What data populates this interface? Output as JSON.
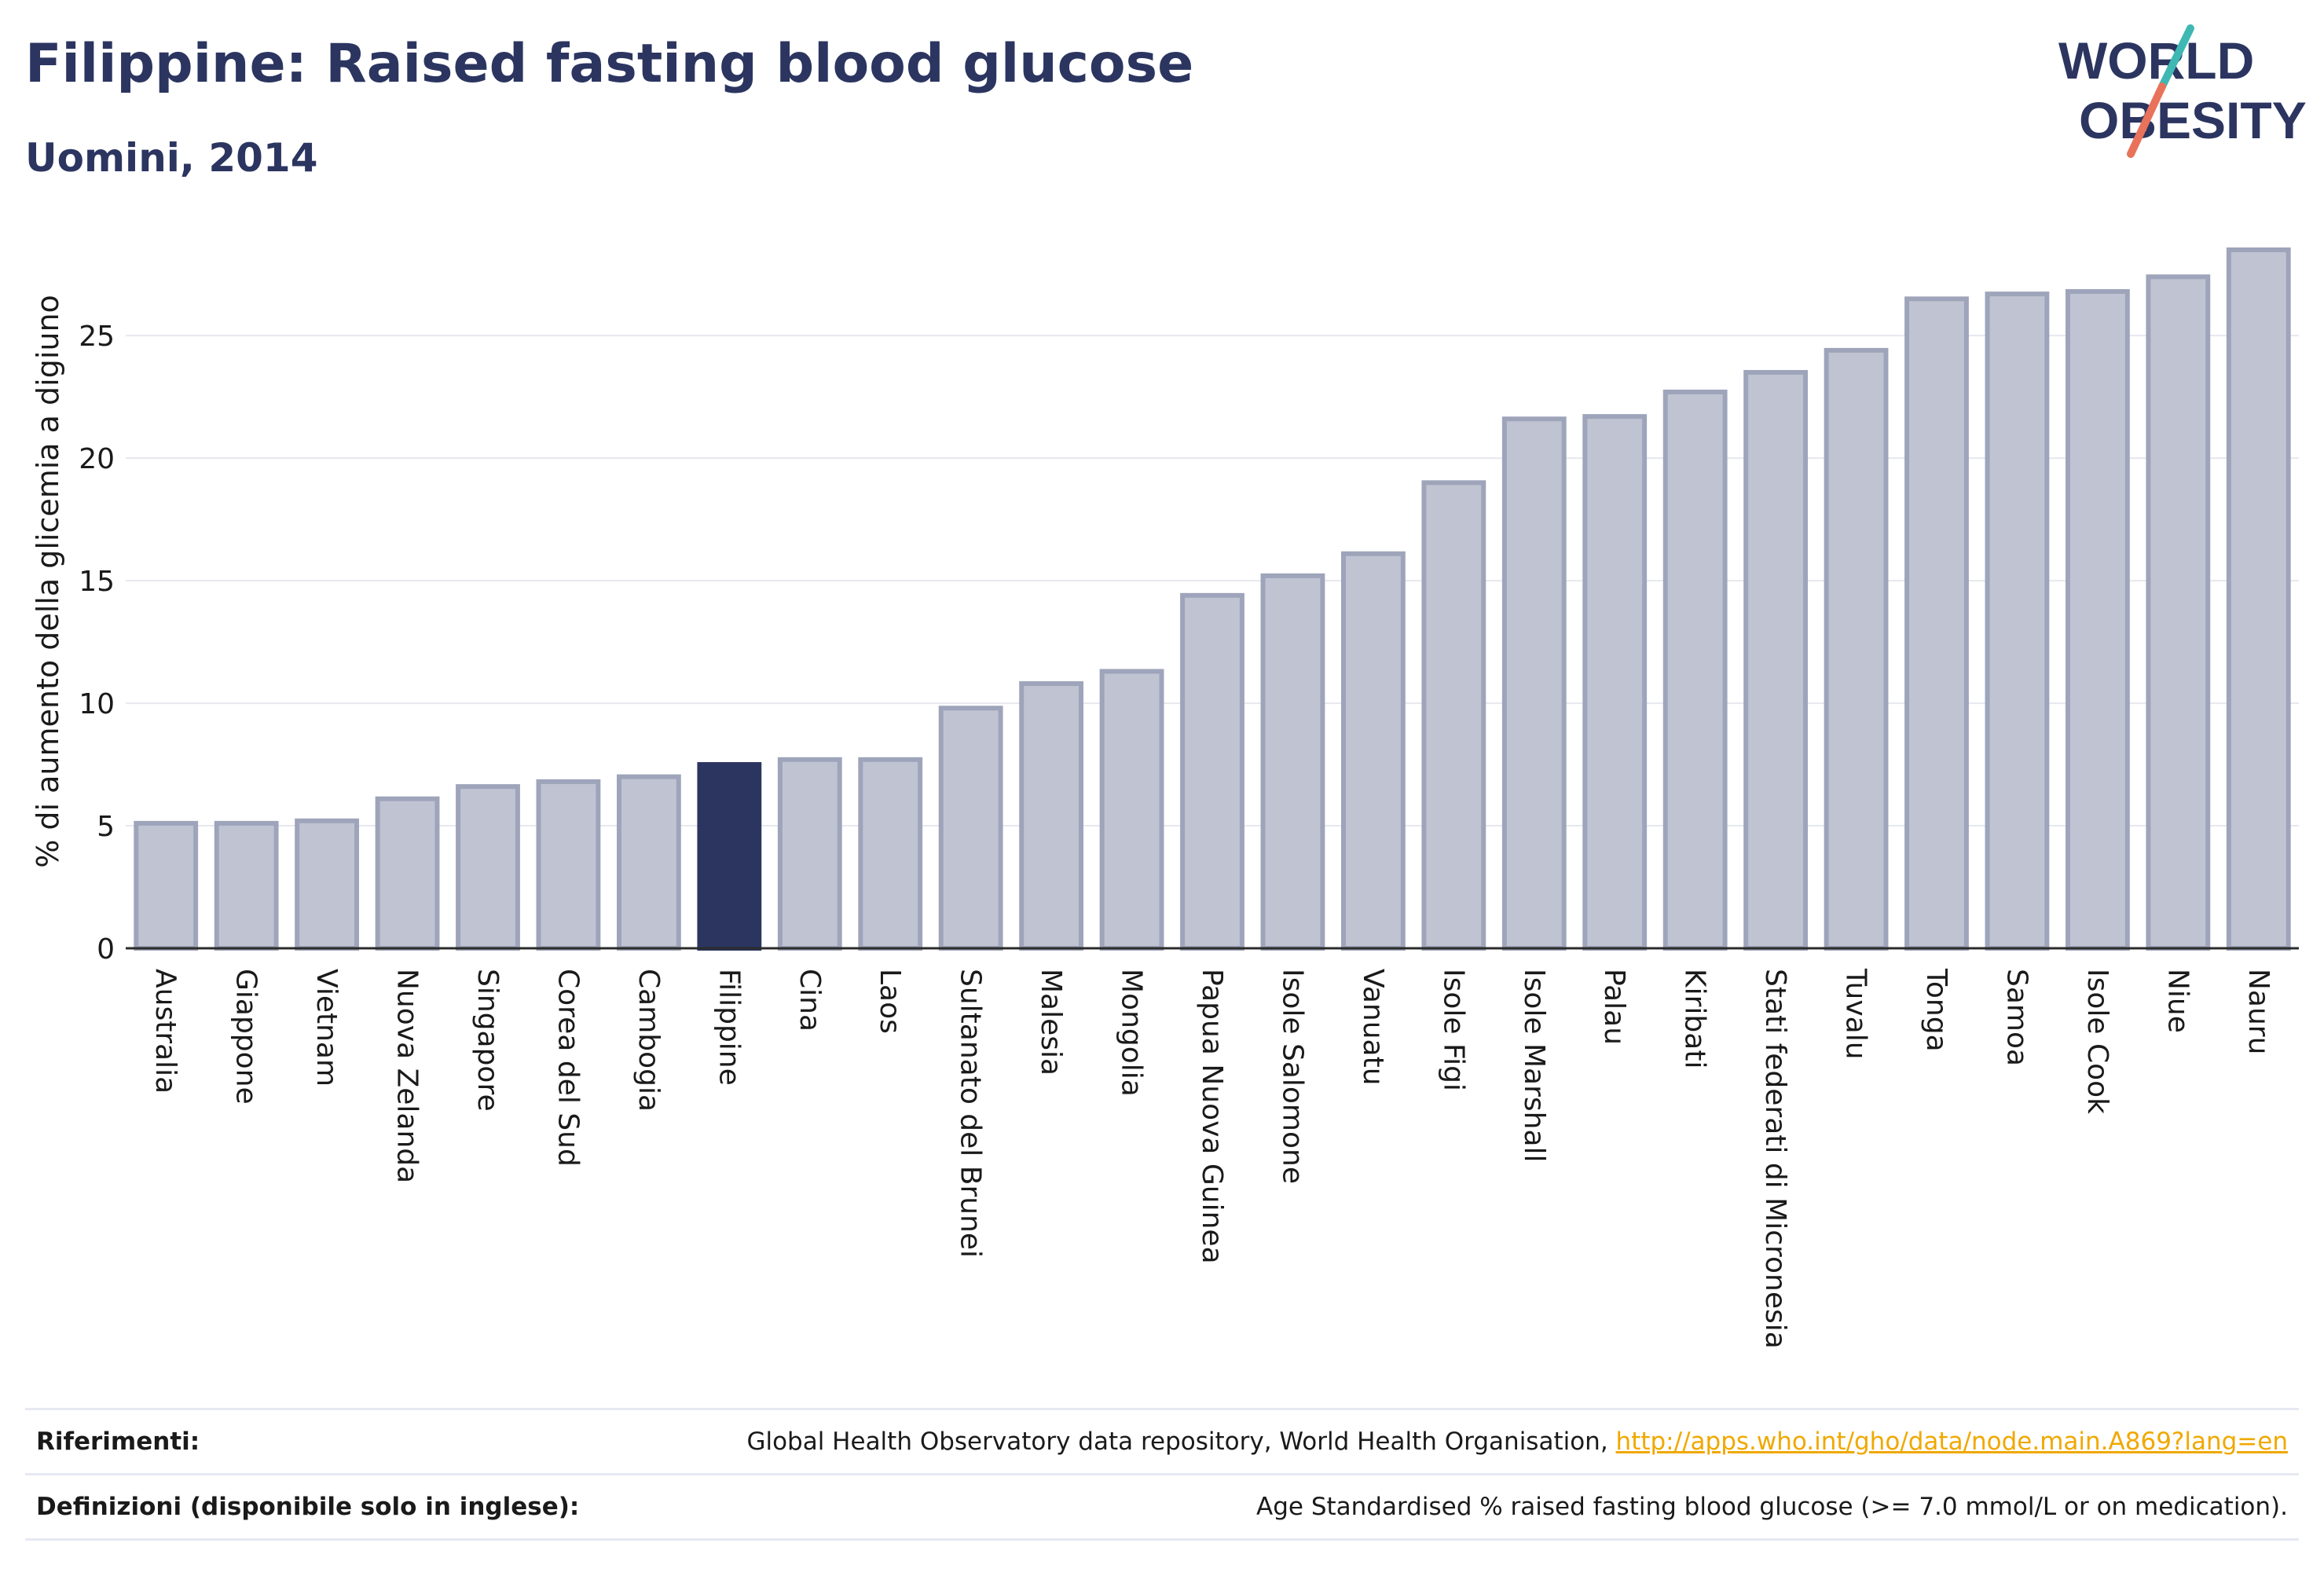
{
  "header": {
    "title": "Filippine: Raised fasting blood glucose",
    "subtitle": "Uomini, 2014"
  },
  "logo": {
    "line1": "WORLD",
    "line2": "OBESITY",
    "slash_colors": [
      "#3fb8b4",
      "#e8735a"
    ],
    "text_color": "#2b3560"
  },
  "chart_data": {
    "type": "bar",
    "title": "Filippine: Raised fasting blood glucose",
    "subtitle": "Uomini, 2014",
    "ylabel": "% di aumento della glicemia a digiuno",
    "xlabel": "",
    "ylim": [
      0,
      28.5
    ],
    "yticks": [
      0,
      5,
      10,
      15,
      20,
      25
    ],
    "grid": true,
    "highlight": "Filippine",
    "colors": {
      "bar": "#c0c4d2",
      "bar_border": "#9ea4ba",
      "highlight": "#2b3560"
    },
    "categories": [
      "Australia",
      "Giappone",
      "Vietnam",
      "Nuova Zelanda",
      "Singapore",
      "Corea del Sud",
      "Cambogia",
      "Filippine",
      "Cina",
      "Laos",
      "Sultanato del Brunei",
      "Malesia",
      "Mongolia",
      "Papua Nuova Guinea",
      "Isole Salomone",
      "Vanuatu",
      "Isole Figi",
      "Isole Marshall",
      "Palau",
      "Kiribati",
      "Stati federati di Micronesia",
      "Tuvalu",
      "Tonga",
      "Samoa",
      "Isole Cook",
      "Niue",
      "Nauru"
    ],
    "values": [
      5.1,
      5.1,
      5.2,
      6.1,
      6.6,
      6.8,
      7.0,
      7.5,
      7.7,
      7.7,
      9.8,
      10.8,
      11.3,
      14.4,
      15.2,
      16.1,
      19.0,
      21.6,
      21.7,
      22.7,
      23.5,
      24.4,
      26.5,
      26.7,
      26.8,
      27.4,
      28.5
    ]
  },
  "footer": {
    "references_label": "Riferimenti:",
    "references_text": "Global Health Observatory data repository, World Health Organisation, ",
    "references_link": "http://apps.who.int/gho/data/node.main.A869?lang=en",
    "definitions_label": "Definizioni (disponibile solo in inglese):",
    "definitions_text": "Age Standardised % raised fasting blood glucose (>= 7.0 mmol/L or on medication)."
  }
}
